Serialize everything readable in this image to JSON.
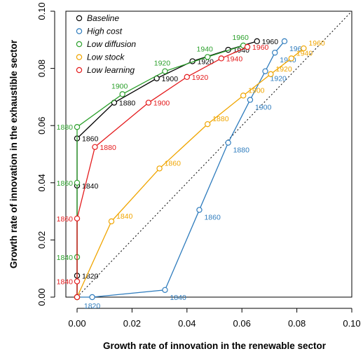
{
  "chart_data": {
    "type": "line",
    "title": "",
    "xlabel": "Growth rate of innovation in the renewable sector",
    "ylabel": "Growth rate of innovation in the exhaustible sector",
    "xlim": [
      0,
      0.1
    ],
    "ylim": [
      0,
      0.1
    ],
    "xticks": [
      "0.00",
      "0.02",
      "0.04",
      "0.06",
      "0.08",
      "0.10"
    ],
    "yticks": [
      "0.00",
      "0.02",
      "0.04",
      "0.06",
      "0.08",
      "0.10"
    ],
    "legend_position": "top-left",
    "reference_line": "dotted diagonal y = x",
    "series": [
      {
        "name": "Baseline",
        "color": "#000000",
        "points": [
          {
            "x": 0.0,
            "y": 0.0
          },
          {
            "x": 0.0,
            "y": 0.0075,
            "label": "1820"
          },
          {
            "x": 0.0,
            "y": 0.039,
            "label": "1840"
          },
          {
            "x": 0.0,
            "y": 0.0555,
            "label": "1860"
          },
          {
            "x": 0.0135,
            "y": 0.068,
            "label": "1880"
          },
          {
            "x": 0.029,
            "y": 0.0765,
            "label": "1900"
          },
          {
            "x": 0.042,
            "y": 0.0825,
            "label": "1920"
          },
          {
            "x": 0.055,
            "y": 0.0865,
            "label": "1940"
          },
          {
            "x": 0.0655,
            "y": 0.0895,
            "label": "1960"
          }
        ]
      },
      {
        "name": "High cost",
        "color": "#2f7cbd",
        "points": [
          {
            "x": 0.0,
            "y": 0.0
          },
          {
            "x": 0.0055,
            "y": 0.0,
            "label": "1820"
          },
          {
            "x": 0.032,
            "y": 0.0025,
            "label": "1840"
          },
          {
            "x": 0.0445,
            "y": 0.0305,
            "label": "1860"
          },
          {
            "x": 0.055,
            "y": 0.054,
            "label": "1880"
          },
          {
            "x": 0.063,
            "y": 0.069,
            "label": "1900"
          },
          {
            "x": 0.0685,
            "y": 0.079,
            "label": "1920"
          },
          {
            "x": 0.072,
            "y": 0.0855,
            "label": "1940"
          },
          {
            "x": 0.0755,
            "y": 0.0895,
            "label": "1960"
          }
        ]
      },
      {
        "name": "Low diffusion",
        "color": "#2ca02c",
        "points": [
          {
            "x": 0.0,
            "y": 0.0
          },
          {
            "x": 0.0,
            "y": 0.014,
            "label": "1840"
          },
          {
            "x": 0.0,
            "y": 0.04,
            "label": "1860"
          },
          {
            "x": 0.0,
            "y": 0.0595,
            "label": "1880"
          },
          {
            "x": 0.0165,
            "y": 0.071,
            "label": "1900"
          },
          {
            "x": 0.032,
            "y": 0.079,
            "label": "1920"
          },
          {
            "x": 0.0475,
            "y": 0.084,
            "label": "1940"
          },
          {
            "x": 0.0605,
            "y": 0.088,
            "label": "1960"
          }
        ]
      },
      {
        "name": "Low stock",
        "color": "#f0a500",
        "points": [
          {
            "x": 0.0,
            "y": 0.0
          },
          {
            "x": 0.0125,
            "y": 0.0265,
            "label": "1840"
          },
          {
            "x": 0.03,
            "y": 0.045,
            "label": "1860"
          },
          {
            "x": 0.0475,
            "y": 0.0605,
            "label": "1880"
          },
          {
            "x": 0.0605,
            "y": 0.0705,
            "label": "1900"
          },
          {
            "x": 0.0705,
            "y": 0.078,
            "label": "1920"
          },
          {
            "x": 0.078,
            "y": 0.0835,
            "label": "1940"
          },
          {
            "x": 0.0825,
            "y": 0.087,
            "label": "1960"
          }
        ]
      },
      {
        "name": "Low learning",
        "color": "#e41a1c",
        "points": [
          {
            "x": 0.0,
            "y": 0.0
          },
          {
            "x": 0.0,
            "y": 0.0055,
            "label": "1840"
          },
          {
            "x": 0.0,
            "y": 0.0275,
            "label": "1860"
          },
          {
            "x": 0.0065,
            "y": 0.0525,
            "label": "1880"
          },
          {
            "x": 0.026,
            "y": 0.068,
            "label": "1900"
          },
          {
            "x": 0.04,
            "y": 0.077,
            "label": "1920"
          },
          {
            "x": 0.0525,
            "y": 0.0835,
            "label": "1940"
          },
          {
            "x": 0.062,
            "y": 0.0875,
            "label": "1960"
          }
        ]
      }
    ]
  }
}
